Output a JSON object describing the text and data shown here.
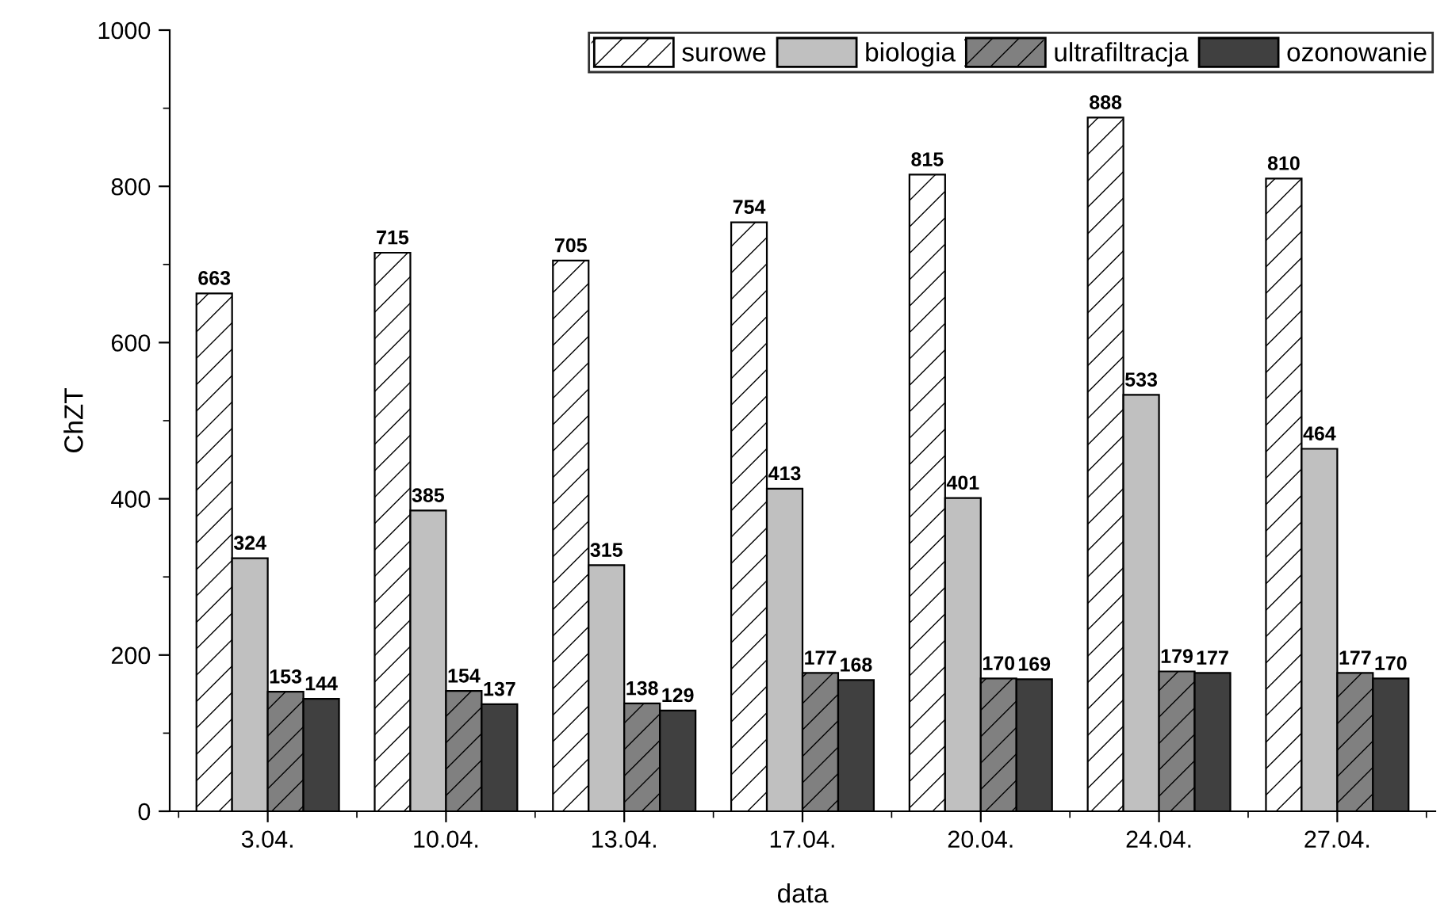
{
  "chart_data": {
    "type": "bar",
    "xlabel": "data",
    "ylabel": "ChZT",
    "categories": [
      "3.04.",
      "10.04.",
      "13.04.",
      "17.04.",
      "20.04.",
      "24.04.",
      "27.04."
    ],
    "series": [
      {
        "name": "surowe",
        "color": "#ffffff",
        "values": [
          663,
          715,
          705,
          754,
          815,
          888,
          810
        ]
      },
      {
        "name": "biologia",
        "color": "#c0c0c0",
        "values": [
          324,
          385,
          315,
          413,
          401,
          533,
          464
        ]
      },
      {
        "name": "ultrafiltracja",
        "color": "#808080",
        "values": [
          153,
          154,
          138,
          177,
          170,
          179,
          177
        ]
      },
      {
        "name": "ozonowanie",
        "color": "#404040",
        "values": [
          144,
          137,
          129,
          168,
          169,
          177,
          170
        ]
      }
    ],
    "ylim": [
      0,
      1000
    ],
    "yticks": [
      0,
      200,
      400,
      600,
      800,
      1000
    ],
    "data_labels": true,
    "grid": false,
    "legend": "top right"
  }
}
